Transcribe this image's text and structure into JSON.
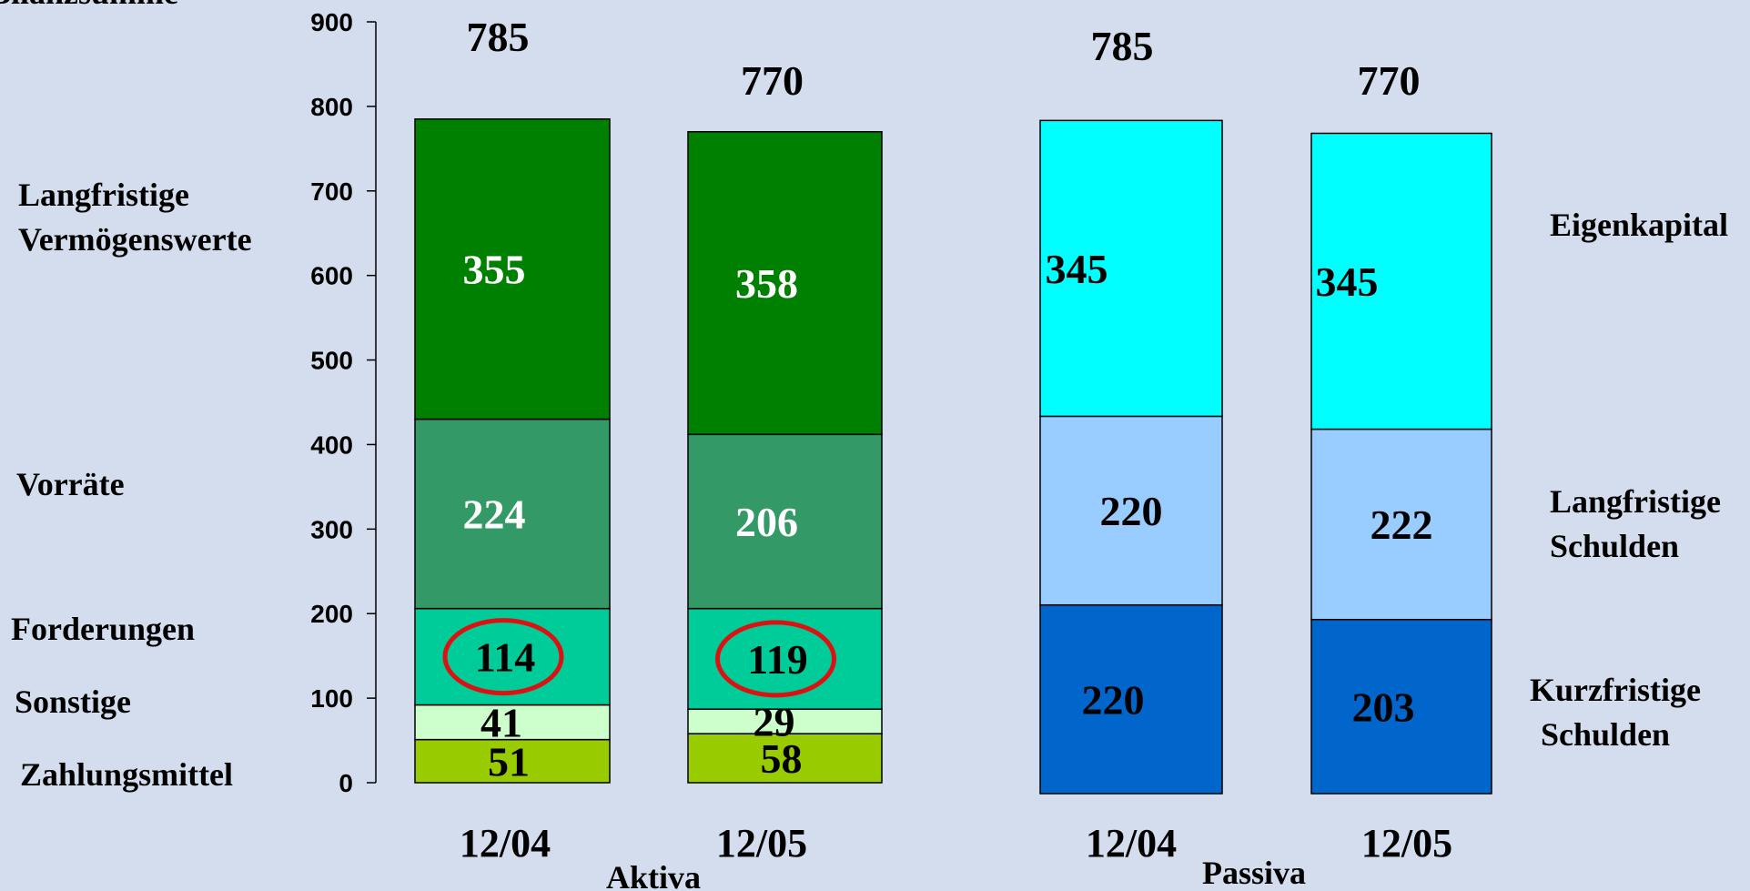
{
  "chart_data": {
    "type": "bar",
    "stacked": true,
    "ylabel": "Bilanzsumme",
    "ylim": [
      0,
      900
    ],
    "yticks": [
      "0",
      "100",
      "200",
      "300",
      "400",
      "500",
      "600",
      "700",
      "800",
      "900"
    ],
    "groups": [
      {
        "name": "Aktiva",
        "categories": [
          "12/04",
          "12/05"
        ],
        "totals": [
          "785",
          "770"
        ],
        "series": [
          {
            "name": "Zahlungsmittel",
            "values": [
              51,
              58
            ],
            "color": "#99cc00",
            "text_color": "#000000"
          },
          {
            "name": "Sonstige",
            "values": [
              41,
              29
            ],
            "color": "#ccffcc",
            "text_color": "#000000"
          },
          {
            "name": "Forderungen",
            "values": [
              114,
              119
            ],
            "color": "#00cc99",
            "text_color": "#000000",
            "highlighted": true
          },
          {
            "name": "Vorräte",
            "values": [
              224,
              206
            ],
            "color": "#339966",
            "text_color": "#ffffff"
          },
          {
            "name": "Langfristige Vermögenswerte",
            "values": [
              355,
              358
            ],
            "color": "#008000",
            "text_color": "#ffffff"
          }
        ]
      },
      {
        "name": "Passiva",
        "categories": [
          "12/04",
          "12/05"
        ],
        "totals": [
          "785",
          "770"
        ],
        "series": [
          {
            "name": "Kurzfristige Schulden",
            "values": [
              220,
              203
            ],
            "color": "#0066cc",
            "text_color": "#000000"
          },
          {
            "name": "Langfristige Schulden",
            "values": [
              220,
              222
            ],
            "color": "#99ccff",
            "text_color": "#000000"
          },
          {
            "name": "Eigenkapital",
            "values": [
              345,
              345
            ],
            "color": "#00ffff",
            "text_color": "#000000"
          }
        ]
      }
    ],
    "highlight_color": "#dd1111"
  },
  "labels": {
    "aktiva": [
      {
        "lines": [
          "Langfristige",
          "Vermögenswerte"
        ]
      },
      {
        "lines": [
          "Vorräte"
        ]
      },
      {
        "lines": [
          "Forderungen"
        ]
      },
      {
        "lines": [
          "Sonstige"
        ]
      },
      {
        "lines": [
          "Zahlungsmittel"
        ]
      }
    ],
    "passiva": [
      {
        "lines": [
          "Eigenkapital"
        ]
      },
      {
        "lines": [
          "Langfristige",
          "Schulden"
        ]
      },
      {
        "lines": [
          "Kurzfristige",
          "Schulden"
        ]
      }
    ]
  }
}
